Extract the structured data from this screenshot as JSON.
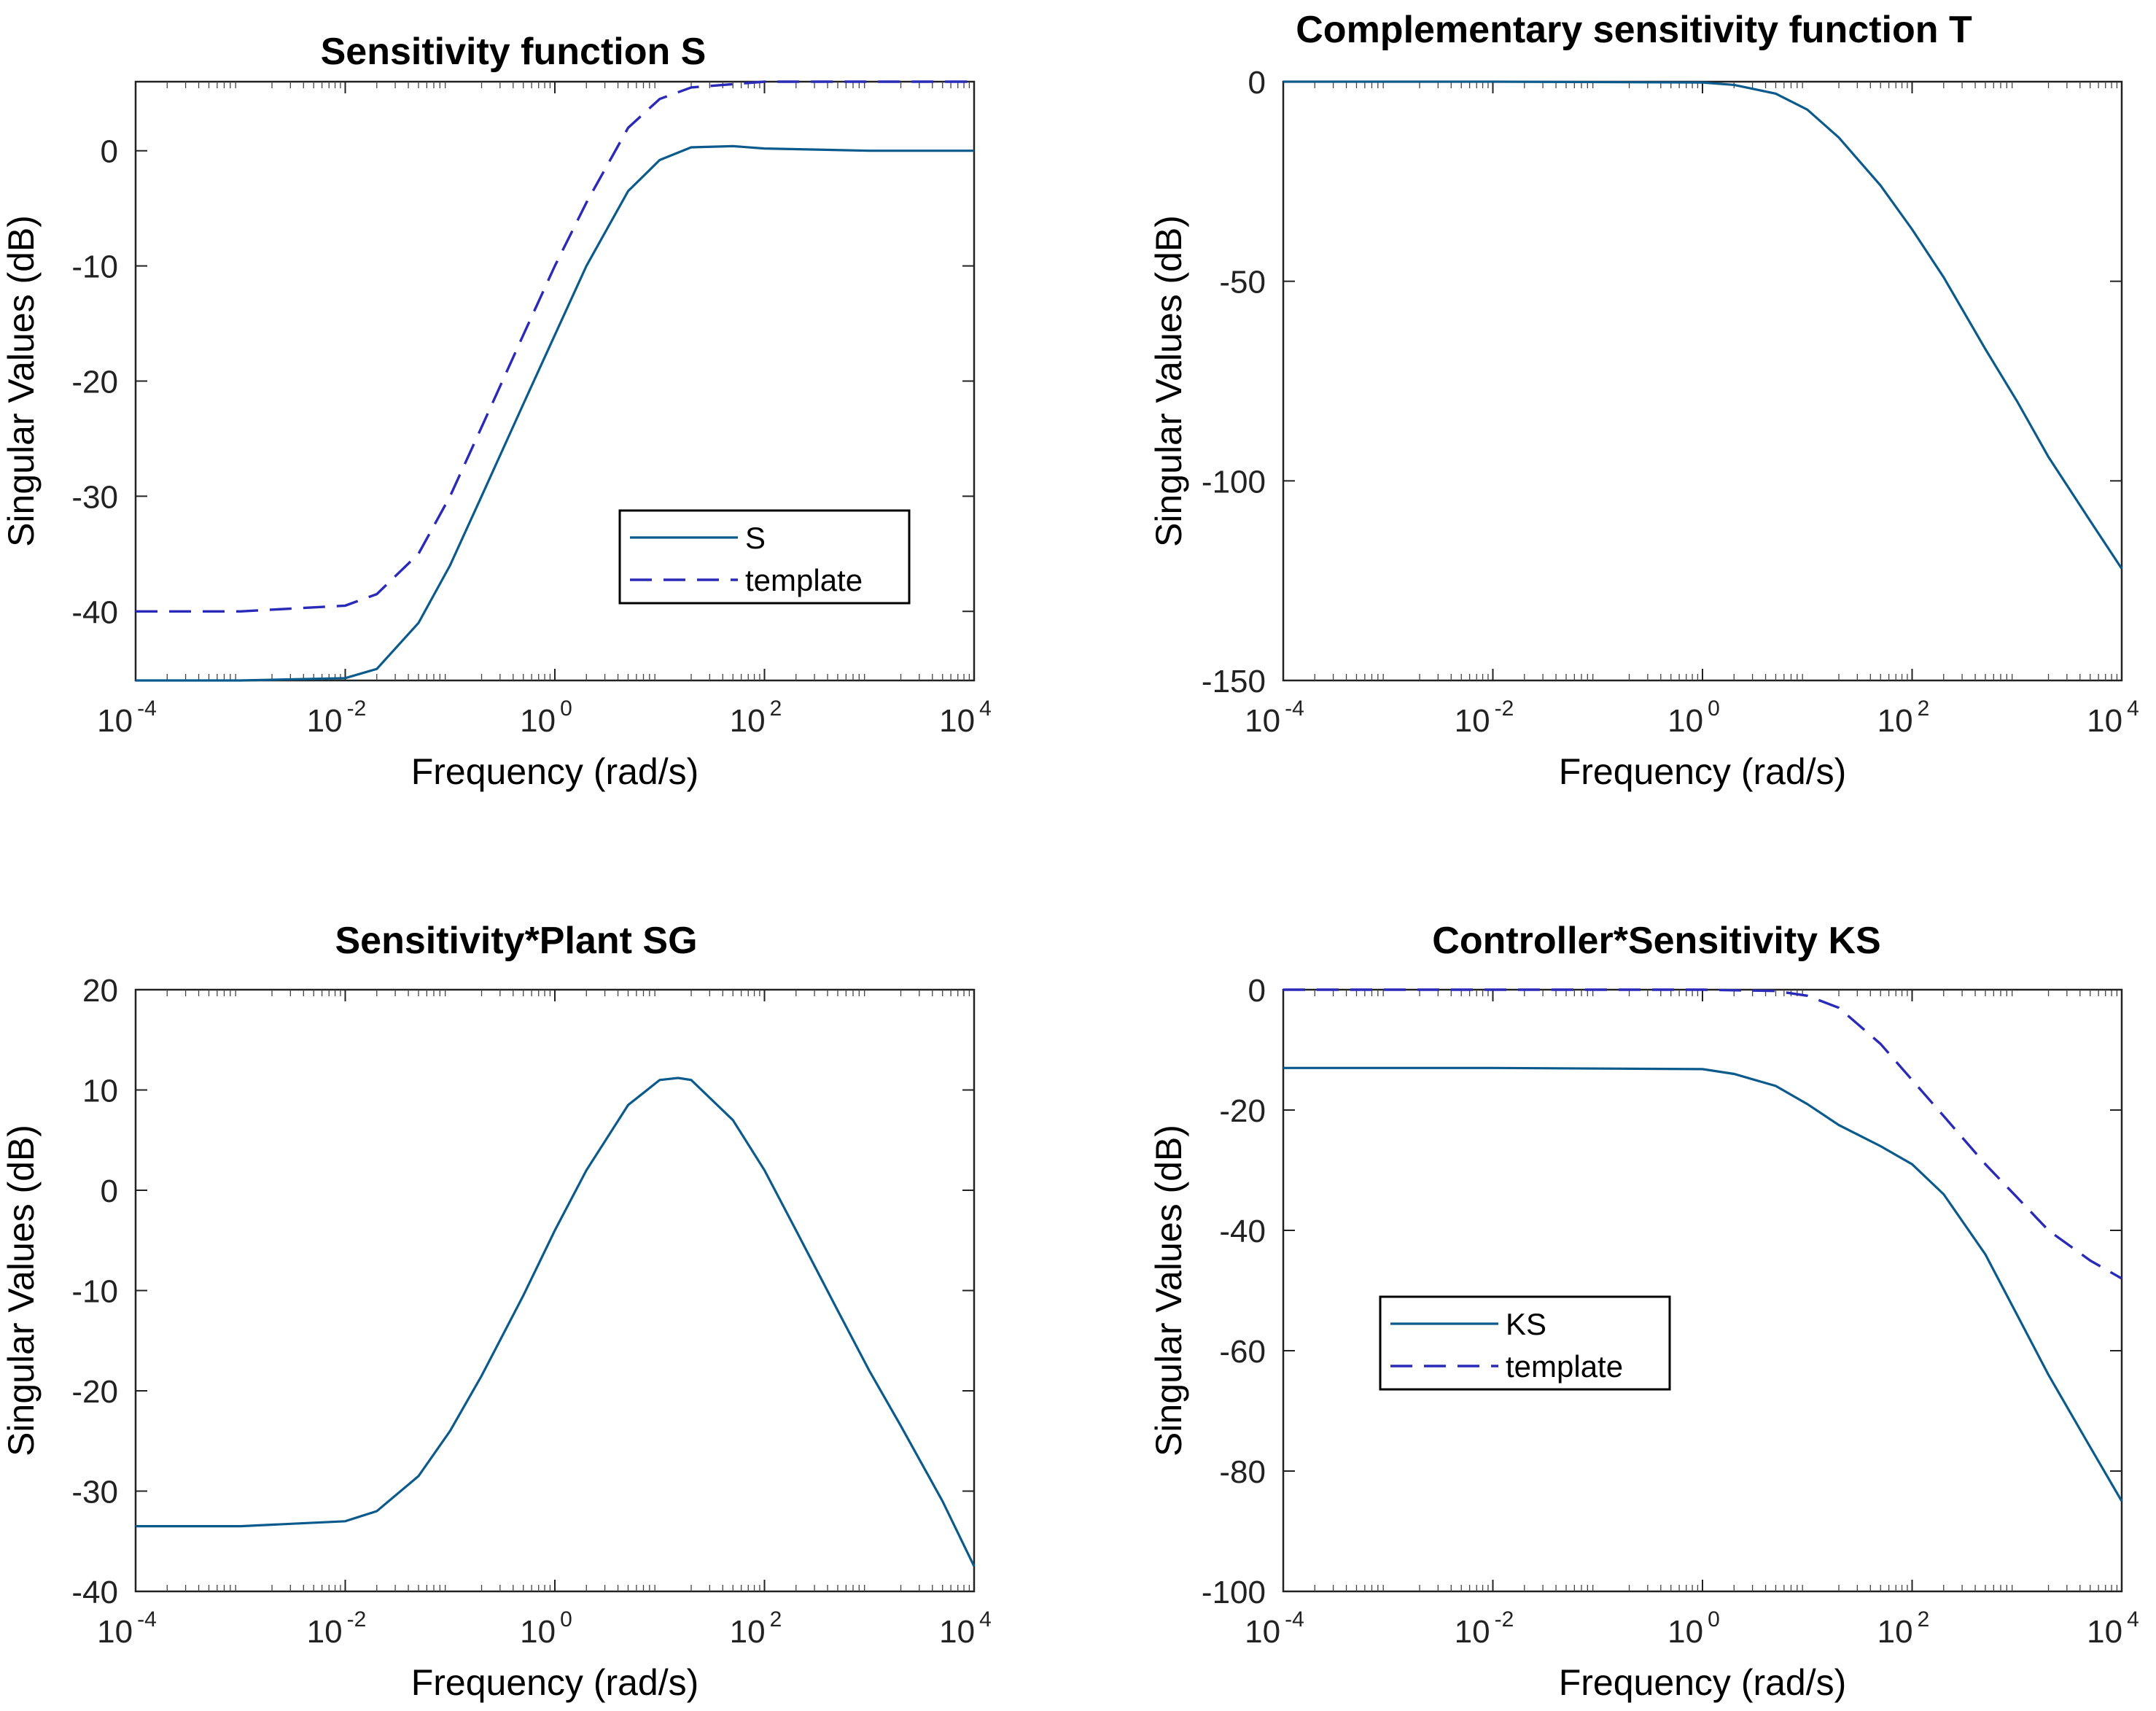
{
  "chart_data": [
    {
      "type": "line",
      "title": "Sensitivity function S",
      "xlabel": "Frequency (rad/s)",
      "ylabel": "Singular Values (dB)",
      "xscale": "log",
      "xlim": [
        0.0001,
        10000
      ],
      "ylim": [
        -46,
        6
      ],
      "xticks": [
        {
          "base": "10",
          "exp": "-4"
        },
        {
          "base": "10",
          "exp": "-2"
        },
        {
          "base": "10",
          "exp": "0"
        },
        {
          "base": "10",
          "exp": "2"
        },
        {
          "base": "10",
          "exp": "4"
        }
      ],
      "yticks": [
        -40,
        -30,
        -20,
        -10,
        0
      ],
      "legend": {
        "position": "middle-right",
        "entries": [
          "S",
          "template"
        ]
      },
      "series": [
        {
          "name": "S",
          "style": "solid",
          "x": [
            0.0001,
            0.001,
            0.01,
            0.02,
            0.05,
            0.1,
            0.2,
            0.5,
            1,
            2,
            5,
            10,
            20,
            50,
            100,
            1000,
            10000
          ],
          "y": [
            -46,
            -46,
            -45.8,
            -45,
            -41,
            -36,
            -30,
            -22,
            -16,
            -10,
            -3.5,
            -0.8,
            0.3,
            0.4,
            0.2,
            0,
            0
          ]
        },
        {
          "name": "template",
          "style": "dashed",
          "x": [
            0.0001,
            0.001,
            0.01,
            0.02,
            0.05,
            0.1,
            0.2,
            0.5,
            1,
            2,
            5,
            10,
            20,
            100,
            1000,
            10000
          ],
          "y": [
            -40,
            -40,
            -39.5,
            -38.5,
            -35,
            -30,
            -24,
            -16,
            -10,
            -4.5,
            2,
            4.5,
            5.5,
            6,
            6,
            6
          ]
        }
      ]
    },
    {
      "type": "line",
      "title": "Complementary sensitivity function T",
      "xlabel": "Frequency (rad/s)",
      "ylabel": "Singular Values (dB)",
      "xscale": "log",
      "xlim": [
        0.0001,
        10000
      ],
      "ylim": [
        -150,
        0
      ],
      "xticks": [
        {
          "base": "10",
          "exp": "-4"
        },
        {
          "base": "10",
          "exp": "-2"
        },
        {
          "base": "10",
          "exp": "0"
        },
        {
          "base": "10",
          "exp": "2"
        },
        {
          "base": "10",
          "exp": "4"
        }
      ],
      "yticks": [
        -150,
        -100,
        -50,
        0
      ],
      "series": [
        {
          "name": "T",
          "style": "solid",
          "x": [
            0.0001,
            0.01,
            1,
            2,
            5,
            10,
            20,
            50,
            100,
            200,
            500,
            1000,
            2000,
            5000,
            10000
          ],
          "y": [
            0,
            0,
            -0.2,
            -0.8,
            -3,
            -7,
            -14,
            -26,
            -37,
            -49,
            -67,
            -80,
            -94,
            -110,
            -122
          ]
        }
      ]
    },
    {
      "type": "line",
      "title": "Sensitivity*Plant SG",
      "xlabel": "Frequency (rad/s)",
      "ylabel": "Singular Values (dB)",
      "xscale": "log",
      "xlim": [
        0.0001,
        10000
      ],
      "ylim": [
        -40,
        20
      ],
      "xticks": [
        {
          "base": "10",
          "exp": "-4"
        },
        {
          "base": "10",
          "exp": "-2"
        },
        {
          "base": "10",
          "exp": "0"
        },
        {
          "base": "10",
          "exp": "2"
        },
        {
          "base": "10",
          "exp": "4"
        }
      ],
      "yticks": [
        -40,
        -30,
        -20,
        -10,
        0,
        10,
        20
      ],
      "series": [
        {
          "name": "SG",
          "style": "solid",
          "x": [
            0.0001,
            0.001,
            0.01,
            0.02,
            0.05,
            0.1,
            0.2,
            0.5,
            1,
            2,
            5,
            10,
            15,
            20,
            50,
            100,
            200,
            500,
            1000,
            2000,
            5000,
            10000
          ],
          "y": [
            -33.5,
            -33.5,
            -33,
            -32,
            -28.5,
            -24,
            -18.5,
            -10.5,
            -4,
            2,
            8.5,
            11,
            11.2,
            11,
            7,
            2,
            -4,
            -12,
            -18,
            -23.5,
            -31,
            -37.5
          ]
        }
      ]
    },
    {
      "type": "line",
      "title": "Controller*Sensitivity KS",
      "xlabel": "Frequency (rad/s)",
      "ylabel": "Singular Values (dB)",
      "xscale": "log",
      "xlim": [
        0.0001,
        10000
      ],
      "ylim": [
        -100,
        0
      ],
      "xticks": [
        {
          "base": "10",
          "exp": "-4"
        },
        {
          "base": "10",
          "exp": "-2"
        },
        {
          "base": "10",
          "exp": "0"
        },
        {
          "base": "10",
          "exp": "2"
        },
        {
          "base": "10",
          "exp": "4"
        }
      ],
      "yticks": [
        -100,
        -80,
        -60,
        -40,
        -20,
        0
      ],
      "legend": {
        "position": "bottom-left",
        "entries": [
          "KS",
          "template"
        ]
      },
      "series": [
        {
          "name": "KS",
          "style": "solid",
          "x": [
            0.0001,
            0.01,
            1,
            2,
            5,
            10,
            20,
            50,
            100,
            200,
            500,
            1000,
            2000,
            5000,
            10000
          ],
          "y": [
            -13,
            -13,
            -13.2,
            -14,
            -16,
            -19,
            -22.5,
            -26,
            -29,
            -34,
            -44,
            -54,
            -64,
            -76,
            -85
          ]
        },
        {
          "name": "template",
          "style": "dashed",
          "x": [
            0.0001,
            0.01,
            1,
            5,
            10,
            20,
            50,
            100,
            200,
            500,
            1000,
            2000,
            5000,
            10000
          ],
          "y": [
            0,
            0,
            0,
            -0.2,
            -1,
            -3,
            -9,
            -15,
            -21,
            -29,
            -34.5,
            -40,
            -45,
            -48
          ]
        }
      ]
    }
  ]
}
